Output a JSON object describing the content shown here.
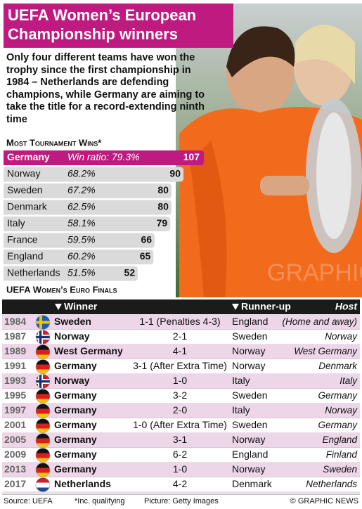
{
  "header": {
    "title": "UEFA Women’s European Championship winners",
    "subtitle": "Only four different teams have won the trophy since the first championship in 1984 – Netherlands are defending champions, while Germany are aiming to take the title for a record-extending ninth time"
  },
  "chart_data": {
    "type": "bar",
    "orientation": "horizontal",
    "title": "Most Tournament Wins*",
    "categories": [
      "Germany",
      "Norway",
      "Sweden",
      "Denmark",
      "Italy",
      "France",
      "England",
      "Netherlands"
    ],
    "values": [
      107,
      90,
      80,
      80,
      79,
      66,
      65,
      52
    ],
    "win_ratio_labels": [
      "Win ratio: 79.3%",
      "68.2%",
      "67.2%",
      "62.5%",
      "58.1%",
      "59.5%",
      "60.2%",
      "51.5%"
    ],
    "highlight_color": "#bf1a80",
    "color": "#dadada"
  },
  "table": {
    "title": "UEFA Women’s Euro Finals",
    "columns": [
      "Winner",
      "Runner-up",
      "Host"
    ],
    "rows": [
      [
        "1984",
        "Sweden",
        "1-1 (Penalties 4-3)",
        "England",
        "(Home and away)"
      ],
      [
        "1987",
        "Norway",
        "2-1",
        "Sweden",
        "Norway"
      ],
      [
        "1989",
        "West Germany",
        "4-1",
        "Norway",
        "West Germany"
      ],
      [
        "1991",
        "Germany",
        "3-1 (After Extra Time)",
        "Norway",
        "Denmark"
      ],
      [
        "1993",
        "Norway",
        "1-0",
        "Italy",
        "Italy"
      ],
      [
        "1995",
        "Germany",
        "3-2",
        "Sweden",
        "Germany"
      ],
      [
        "1997",
        "Germany",
        "2-0",
        "Italy",
        "Norway"
      ],
      [
        "2001",
        "Germany",
        "1-0 (After Extra Time)",
        "Sweden",
        "Germany"
      ],
      [
        "2005",
        "Germany",
        "3-1",
        "Norway",
        "England"
      ],
      [
        "2009",
        "Germany",
        "6-2",
        "England",
        "Finland"
      ],
      [
        "2013",
        "Germany",
        "1-0",
        "Norway",
        "Sweden"
      ],
      [
        "2017",
        "Netherlands",
        "4-2",
        "Denmark",
        "Netherlands"
      ]
    ]
  },
  "footer": {
    "source": "Source: UEFA",
    "note": "*Inc. qualifying",
    "credit": "Picture: Getty Images",
    "copyright": "© GRAPHIC NEWS"
  },
  "watermark": "GRAPHIC NEWS"
}
